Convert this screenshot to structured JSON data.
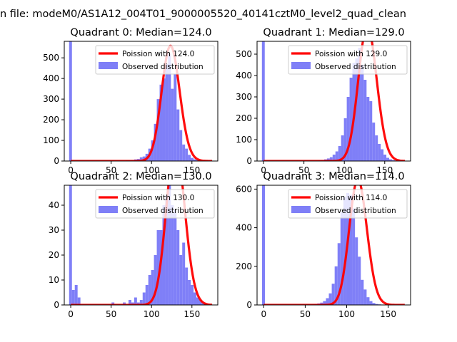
{
  "figure": {
    "suptitle": "n file: modeM0/AS1A12_004T01_9000005520_40141cztM0_level2_quad_clean"
  },
  "colors": {
    "hist": "#7f7ff7",
    "poisson": "#ff0000",
    "axes": "#000000",
    "background": "#ffffff"
  },
  "chart_data": [
    {
      "type": "bar",
      "title": "Quadrant 0: Median=124.0",
      "xlim": [
        -8,
        182
      ],
      "ylim": [
        0,
        580
      ],
      "xticks": [
        0,
        50,
        100,
        150
      ],
      "yticks": [
        0,
        100,
        200,
        300,
        400,
        500
      ],
      "legend_position": "top-right",
      "legend": [
        "Poission with 124.0",
        "Observed distribution"
      ],
      "series": [
        {
          "name": "Observed distribution",
          "type": "histogram",
          "bin_start": -2,
          "bin_width": 3.5,
          "counts": [
            580,
            0,
            0,
            0,
            0,
            0,
            0,
            0,
            0,
            0,
            0,
            0,
            0,
            0,
            0,
            0,
            0,
            0,
            0,
            0,
            3,
            3,
            5,
            8,
            10,
            18,
            22,
            35,
            60,
            100,
            180,
            300,
            370,
            400,
            470,
            520,
            350,
            420,
            250,
            150,
            80,
            60,
            30,
            15,
            8,
            4,
            3,
            0,
            0,
            0,
            0,
            0
          ]
        },
        {
          "name": "Poission with 124.0",
          "type": "line",
          "mean": 124,
          "x_range": [
            0,
            175
          ]
        }
      ]
    },
    {
      "type": "bar",
      "title": "Quadrant 1: Median=129.0",
      "xlim": [
        -8,
        182
      ],
      "ylim": [
        0,
        560
      ],
      "xticks": [
        0,
        50,
        100,
        150
      ],
      "yticks": [
        0,
        100,
        200,
        300,
        400,
        500
      ],
      "legend_position": "top-right",
      "legend": [
        "Poission with 129.0",
        "Observed distribution"
      ],
      "series": [
        {
          "name": "Observed distribution",
          "type": "histogram",
          "bin_start": -2,
          "bin_width": 3.5,
          "counts": [
            560,
            0,
            0,
            0,
            0,
            0,
            0,
            0,
            0,
            0,
            0,
            0,
            0,
            0,
            0,
            0,
            0,
            0,
            0,
            0,
            3,
            5,
            8,
            12,
            18,
            30,
            45,
            70,
            120,
            200,
            300,
            390,
            460,
            480,
            530,
            450,
            380,
            300,
            280,
            180,
            120,
            80,
            55,
            30,
            15,
            8,
            4,
            2,
            0,
            0,
            0,
            0
          ]
        },
        {
          "name": "Poission with 129.0",
          "type": "line",
          "mean": 129,
          "x_range": [
            0,
            175
          ]
        }
      ]
    },
    {
      "type": "bar",
      "title": "Quadrant 2: Median=130.0",
      "xlim": [
        -8,
        182
      ],
      "ylim": [
        0,
        48
      ],
      "xticks": [
        0,
        50,
        100,
        150
      ],
      "yticks": [
        0,
        10,
        20,
        30,
        40
      ],
      "legend_position": "top-right",
      "legend": [
        "Poission with 130.0",
        "Observed distribution"
      ],
      "series": [
        {
          "name": "Observed distribution",
          "type": "histogram",
          "bin_start": -2,
          "bin_width": 3.5,
          "counts": [
            48,
            6,
            8,
            3,
            0,
            0,
            0,
            0,
            0,
            0,
            0,
            0,
            0,
            0,
            0,
            1,
            0,
            0,
            0,
            1,
            0,
            2,
            1,
            3,
            1,
            2,
            5,
            8,
            12,
            14,
            20,
            30,
            30,
            40,
            44,
            48,
            40,
            38,
            30,
            20,
            25,
            15,
            10,
            8,
            5,
            3,
            2,
            1,
            0,
            0,
            0,
            0
          ]
        },
        {
          "name": "Poission with 130.0",
          "type": "line",
          "mean": 130,
          "x_range": [
            0,
            175
          ]
        }
      ]
    },
    {
      "type": "bar",
      "title": "Quadrant 3: Median=114.0",
      "xlim": [
        -8,
        177
      ],
      "ylim": [
        0,
        620
      ],
      "xticks": [
        0,
        50,
        100,
        150
      ],
      "yticks": [
        0,
        200,
        400,
        600
      ],
      "legend_position": "top-right",
      "legend": [
        "Poission with 114.0",
        "Observed distribution"
      ],
      "series": [
        {
          "name": "Observed distribution",
          "type": "histogram",
          "bin_start": -2,
          "bin_width": 3.5,
          "counts": [
            620,
            0,
            0,
            0,
            0,
            0,
            0,
            0,
            0,
            0,
            0,
            0,
            0,
            0,
            0,
            0,
            0,
            3,
            5,
            8,
            12,
            20,
            35,
            60,
            110,
            200,
            320,
            480,
            560,
            580,
            570,
            500,
            350,
            250,
            130,
            80,
            40,
            20,
            10,
            5,
            3,
            1,
            0,
            0,
            0,
            0,
            0,
            0,
            0,
            0,
            0,
            0
          ]
        },
        {
          "name": "Poission with 114.0",
          "type": "line",
          "mean": 114,
          "x_range": [
            0,
            170
          ]
        }
      ]
    }
  ]
}
